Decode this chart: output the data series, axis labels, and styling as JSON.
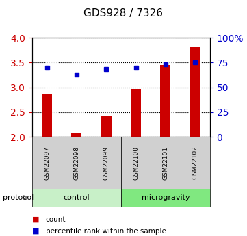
{
  "title": "GDS928 / 7326",
  "categories": [
    "GSM22097",
    "GSM22098",
    "GSM22099",
    "GSM22100",
    "GSM22101",
    "GSM22102"
  ],
  "red_values": [
    2.86,
    2.08,
    2.43,
    2.97,
    3.45,
    3.82
  ],
  "blue_values": [
    3.4,
    3.26,
    3.37,
    3.4,
    3.47,
    3.5
  ],
  "ylim_left": [
    2,
    4
  ],
  "ylim_right": [
    0,
    100
  ],
  "yticks_left": [
    2,
    2.5,
    3,
    3.5,
    4
  ],
  "yticks_right": [
    0,
    25,
    50,
    75,
    100
  ],
  "ytick_labels_right": [
    "0",
    "25",
    "50",
    "75",
    "100%"
  ],
  "control_color": "#c8f0c8",
  "microgravity_color": "#80e880",
  "bar_color": "#cc0000",
  "dot_color": "#0000cc",
  "bar_bottom": 2,
  "left_tick_color": "#cc0000",
  "right_tick_color": "#0000cc",
  "grid_style": "dotted",
  "grid_color": "black",
  "legend_count_label": "count",
  "legend_pct_label": "percentile rank within the sample",
  "label_box_color": "#d0d0d0"
}
